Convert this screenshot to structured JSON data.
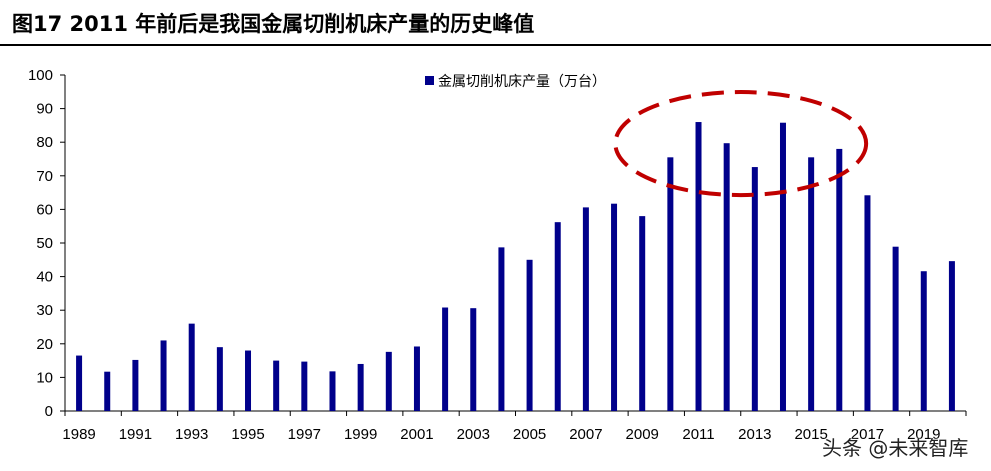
{
  "page": {
    "title": "图17 2011 年前后是我国金属切削机床产量的历史峰值"
  },
  "watermark": {
    "text": "头条 @未来智库"
  },
  "colors": {
    "bar": "#00008B",
    "axis": "#000000",
    "highlight": "#C00000"
  },
  "chart_data": {
    "type": "bar",
    "title": "图17 2011 年前后是我国金属切削机床产量的历史峰值",
    "xlabel": "",
    "ylabel": "",
    "ylim": [
      0,
      100
    ],
    "yticks": [
      0,
      10,
      20,
      30,
      40,
      50,
      60,
      70,
      80,
      90,
      100
    ],
    "grid": false,
    "legend_position": "top-center",
    "categories": [
      "1989",
      "1990",
      "1991",
      "1992",
      "1993",
      "1994",
      "1995",
      "1996",
      "1997",
      "1998",
      "1999",
      "2000",
      "2001",
      "2002",
      "2003",
      "2004",
      "2005",
      "2006",
      "2007",
      "2008",
      "2009",
      "2010",
      "2011",
      "2012",
      "2013",
      "2014",
      "2015",
      "2016",
      "2017",
      "2018",
      "2019",
      "2020"
    ],
    "xtick_labels": [
      "1989",
      "1991",
      "1993",
      "1995",
      "1997",
      "1999",
      "2001",
      "2003",
      "2005",
      "2007",
      "2009",
      "2011",
      "2013",
      "2015",
      "2017",
      "2019"
    ],
    "series": [
      {
        "name": "金属切削机床产量（万台）",
        "values": [
          16.5,
          11.7,
          15.2,
          21.0,
          26.0,
          19.0,
          18.0,
          15.0,
          14.7,
          11.8,
          14.0,
          17.6,
          19.2,
          30.8,
          30.6,
          48.7,
          45.0,
          56.2,
          60.6,
          61.7,
          58.0,
          75.5,
          86.0,
          79.7,
          72.6,
          85.8,
          75.5,
          78.0,
          64.2,
          48.9,
          41.6,
          44.6
        ]
      }
    ],
    "annotations": [
      {
        "type": "dashed-ellipse",
        "label": "",
        "from_category": "2010",
        "to_category": "2015"
      }
    ]
  }
}
